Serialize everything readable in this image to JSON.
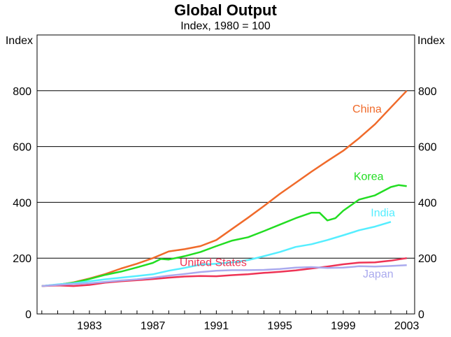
{
  "chart_data": {
    "type": "line",
    "title": "Global Output",
    "subtitle": "Index, 1980 = 100",
    "ylabel_left": "Index",
    "ylabel_right": "Index",
    "xlim": [
      1979.7,
      2003.5
    ],
    "ylim": [
      0,
      1000
    ],
    "yticks": [
      0,
      200,
      400,
      600,
      800
    ],
    "xticks": [
      1983,
      1987,
      1991,
      1995,
      1999,
      2003
    ],
    "grid": true,
    "series": [
      {
        "name": "China",
        "color": "#f06a2a",
        "label_pos": [
          2000.5,
          722
        ],
        "x": [
          1980,
          1981,
          1982,
          1983,
          1984,
          1985,
          1986,
          1987,
          1988,
          1989,
          1990,
          1991,
          1992,
          1993,
          1994,
          1995,
          1996,
          1997,
          1998,
          1999,
          2000,
          2001,
          2002,
          2003
        ],
        "values": [
          100,
          104,
          113,
          127,
          143,
          163,
          180,
          200,
          224,
          232,
          243,
          265,
          305,
          345,
          387,
          430,
          470,
          510,
          548,
          585,
          630,
          680,
          740,
          800
        ]
      },
      {
        "name": "Korea",
        "color": "#22dd22",
        "label_pos": [
          2000.6,
          480
        ],
        "x": [
          1980,
          1981,
          1982,
          1983,
          1984,
          1985,
          1986,
          1987,
          1987.5,
          1988,
          1989,
          1990,
          1991,
          1992,
          1993,
          1994,
          1995,
          1996,
          1997,
          1997.5,
          1998,
          1998.5,
          1999,
          2000,
          2001,
          2002,
          2002.5,
          2003
        ],
        "values": [
          100,
          105,
          112,
          125,
          140,
          152,
          167,
          183,
          197,
          195,
          207,
          222,
          243,
          263,
          275,
          297,
          320,
          343,
          363,
          363,
          335,
          343,
          370,
          410,
          425,
          455,
          462,
          458
        ]
      },
      {
        "name": "India",
        "color": "#55eeff",
        "label_pos": [
          2001.5,
          350
        ],
        "x": [
          1980,
          1981,
          1982,
          1983,
          1984,
          1985,
          1986,
          1987,
          1988,
          1989,
          1990,
          1991,
          1992,
          1993,
          1994,
          1995,
          1996,
          1997,
          1998,
          1999,
          2000,
          2001,
          2002
        ],
        "values": [
          100,
          106,
          110,
          117,
          124,
          130,
          136,
          142,
          155,
          165,
          177,
          180,
          185,
          193,
          207,
          222,
          240,
          250,
          265,
          282,
          300,
          313,
          330
        ]
      },
      {
        "name": "United States",
        "color": "#ee3355",
        "label_pos": [
          1990.8,
          172
        ],
        "x": [
          1980,
          1981,
          1982,
          1983,
          1984,
          1985,
          1986,
          1987,
          1988,
          1989,
          1990,
          1991,
          1992,
          1993,
          1994,
          1995,
          1996,
          1997,
          1998,
          1999,
          2000,
          2001,
          2002,
          2003
        ],
        "values": [
          100,
          102,
          100,
          104,
          112,
          117,
          121,
          125,
          130,
          134,
          136,
          135,
          139,
          142,
          147,
          151,
          156,
          163,
          170,
          178,
          184,
          185,
          191,
          200
        ]
      },
      {
        "name": "Japan",
        "color": "#aaaaee",
        "label_pos": [
          2001.2,
          130
        ],
        "x": [
          1980,
          1981,
          1982,
          1983,
          1984,
          1985,
          1986,
          1987,
          1988,
          1989,
          1990,
          1991,
          1992,
          1993,
          1994,
          1995,
          1996,
          1997,
          1998,
          1999,
          2000,
          2001,
          2002,
          2003
        ],
        "values": [
          100,
          104,
          107,
          110,
          115,
          120,
          124,
          130,
          137,
          143,
          150,
          155,
          157,
          157,
          158,
          161,
          166,
          168,
          165,
          166,
          171,
          170,
          172,
          175
        ]
      }
    ]
  }
}
